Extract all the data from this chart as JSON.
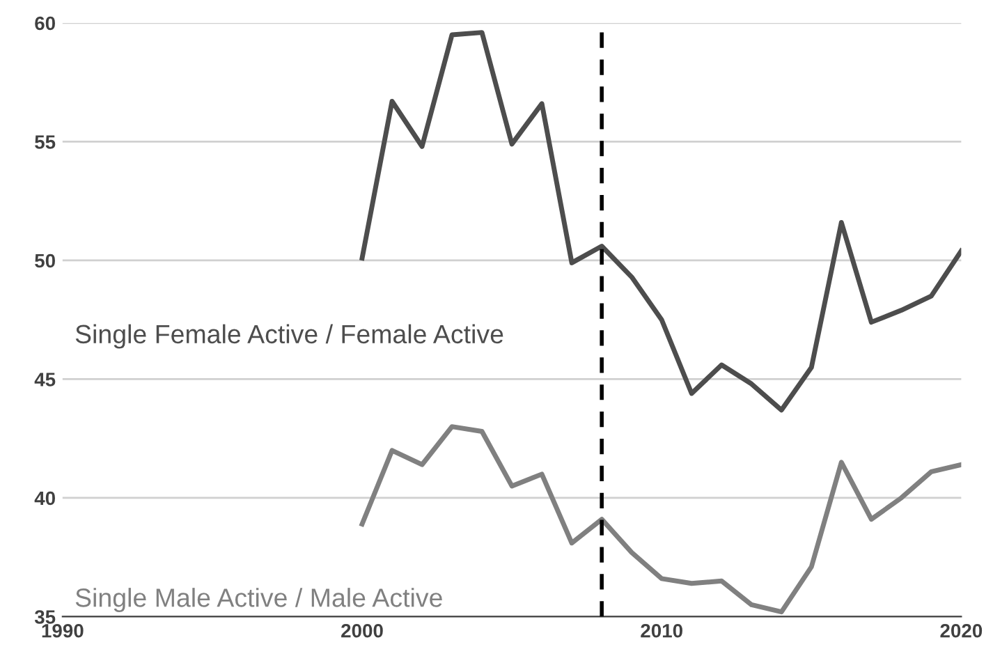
{
  "chart_data": {
    "type": "line",
    "xlim": [
      1990,
      2020
    ],
    "xticks": [
      1990,
      2000,
      2010,
      2020
    ],
    "ylim": [
      35,
      60
    ],
    "yticks": [
      35,
      40,
      45,
      50,
      55,
      60
    ],
    "grid": "y",
    "legend": false,
    "marker": "none",
    "line_style": "solid",
    "x": [
      2000,
      2001,
      2002,
      2003,
      2004,
      2005,
      2006,
      2007,
      2008,
      2009,
      2010,
      2011,
      2012,
      2013,
      2014,
      2015,
      2016,
      2017,
      2018,
      2019,
      2020
    ],
    "series": [
      {
        "name": "Single Female Active / Female Active",
        "color": "#4d4d4d",
        "values": [
          50.1,
          56.7,
          54.8,
          59.5,
          59.6,
          54.9,
          56.6,
          49.9,
          50.6,
          49.3,
          47.5,
          44.4,
          45.6,
          44.8,
          43.7,
          45.5,
          51.6,
          47.4,
          47.9,
          48.5,
          50.4
        ]
      },
      {
        "name": "Single Male Active / Male Active",
        "color": "#808080",
        "values": [
          38.9,
          42.0,
          41.4,
          43.0,
          42.8,
          40.5,
          41.0,
          38.1,
          39.1,
          37.7,
          36.6,
          36.4,
          36.5,
          35.5,
          35.2,
          37.1,
          41.5,
          39.1,
          40.0,
          41.1,
          41.4
        ]
      }
    ],
    "ref_lines": [
      {
        "axis": "x",
        "value": 2008,
        "color": "#000000",
        "line_style": "dashed"
      }
    ]
  }
}
